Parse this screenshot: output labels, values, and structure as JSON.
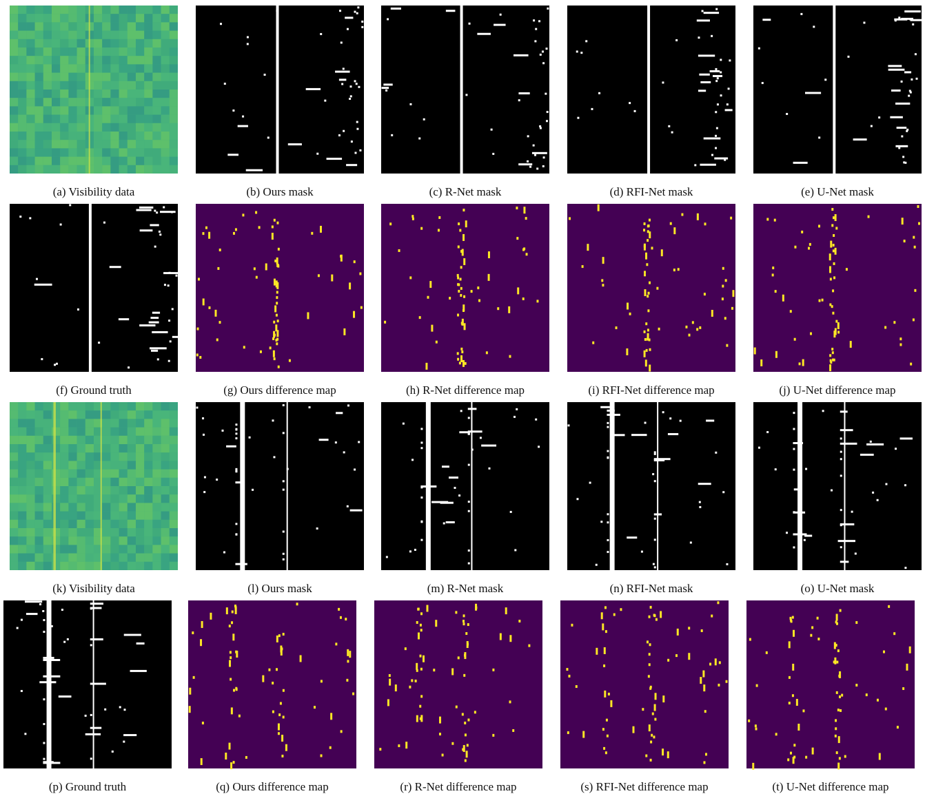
{
  "figure": {
    "panels": [
      {
        "caption": "(a) Visibility data"
      },
      {
        "caption": "(b) Ours mask"
      },
      {
        "caption": "(c) R-Net mask"
      },
      {
        "caption": "(d) RFI-Net mask"
      },
      {
        "caption": "(e) U-Net mask"
      },
      {
        "caption": "(f) Ground truth"
      },
      {
        "caption": "(g) Ours difference map"
      },
      {
        "caption": "(h) R-Net difference map"
      },
      {
        "caption": "(i) RFI-Net difference map"
      },
      {
        "caption": "(j) U-Net difference map"
      },
      {
        "caption": "(k) Visibility data"
      },
      {
        "caption": "(l) Ours mask"
      },
      {
        "caption": "(m) R-Net mask"
      },
      {
        "caption": "(n) RFI-Net mask"
      },
      {
        "caption": "(o) U-Net mask"
      },
      {
        "caption": "(p) Ground truth"
      },
      {
        "caption": "(q) Ours difference map"
      },
      {
        "caption": "(r) R-Net difference map"
      },
      {
        "caption": "(s) RFI-Net difference map"
      },
      {
        "caption": "(t) U-Net difference map"
      }
    ]
  }
}
